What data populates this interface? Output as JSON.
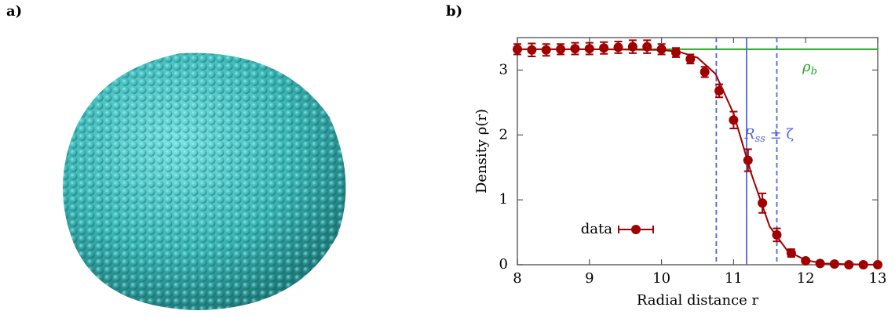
{
  "panel_labels": [
    "a)",
    "b)"
  ],
  "chart_data": {
    "type": "errorbar",
    "xlabel": "Radial distance r",
    "ylabel": "Density ρ(r)",
    "xlim": [
      8,
      13
    ],
    "xticks": [
      8,
      9,
      10,
      11,
      12,
      13
    ],
    "ylim": [
      0,
      3.5
    ],
    "yticks": [
      0,
      1,
      2,
      3
    ],
    "legend": "lower left",
    "series": [
      {
        "name": "data",
        "color": "#a00000",
        "x": [
          8.0,
          8.2,
          8.4,
          8.6,
          8.8,
          9.0,
          9.2,
          9.4,
          9.6,
          9.8,
          10.0,
          10.2,
          10.4,
          10.6,
          10.8,
          11.0,
          11.2,
          11.4,
          11.6,
          11.8,
          12.0,
          12.2,
          12.4,
          12.6,
          12.8,
          13.0
        ],
        "values": [
          3.32,
          3.31,
          3.31,
          3.32,
          3.33,
          3.33,
          3.34,
          3.35,
          3.36,
          3.36,
          3.32,
          3.27,
          3.17,
          2.97,
          2.68,
          2.23,
          1.61,
          0.95,
          0.46,
          0.18,
          0.06,
          0.02,
          0.01,
          0.0,
          0.0,
          0.0
        ],
        "errors": [
          0.08,
          0.1,
          0.09,
          0.08,
          0.09,
          0.09,
          0.09,
          0.09,
          0.1,
          0.1,
          0.08,
          0.07,
          0.07,
          0.08,
          0.1,
          0.13,
          0.17,
          0.15,
          0.1,
          0.06,
          0.03,
          0.01,
          0.01,
          0.01,
          0.01,
          0.01
        ]
      }
    ],
    "fit": {
      "color": "#a00000",
      "x": [
        8.0,
        9.0,
        10.0,
        10.25,
        10.5,
        10.75,
        11.0,
        11.25,
        11.5,
        11.75,
        12.0,
        12.25,
        12.5,
        13.0
      ],
      "values": [
        3.32,
        3.32,
        3.31,
        3.28,
        3.19,
        2.94,
        2.33,
        1.39,
        0.59,
        0.21,
        0.07,
        0.02,
        0.01,
        0.0
      ]
    },
    "reference_line": {
      "value": 3.32,
      "color": "#22aa22",
      "label": "ρ",
      "label_sub": "b"
    },
    "interface_lines": {
      "center": 11.18,
      "lower": 10.76,
      "upper": 11.6,
      "color": "#5566dd",
      "label": "R",
      "label_sub": "ss",
      "label_rest": " ± ζ"
    }
  }
}
